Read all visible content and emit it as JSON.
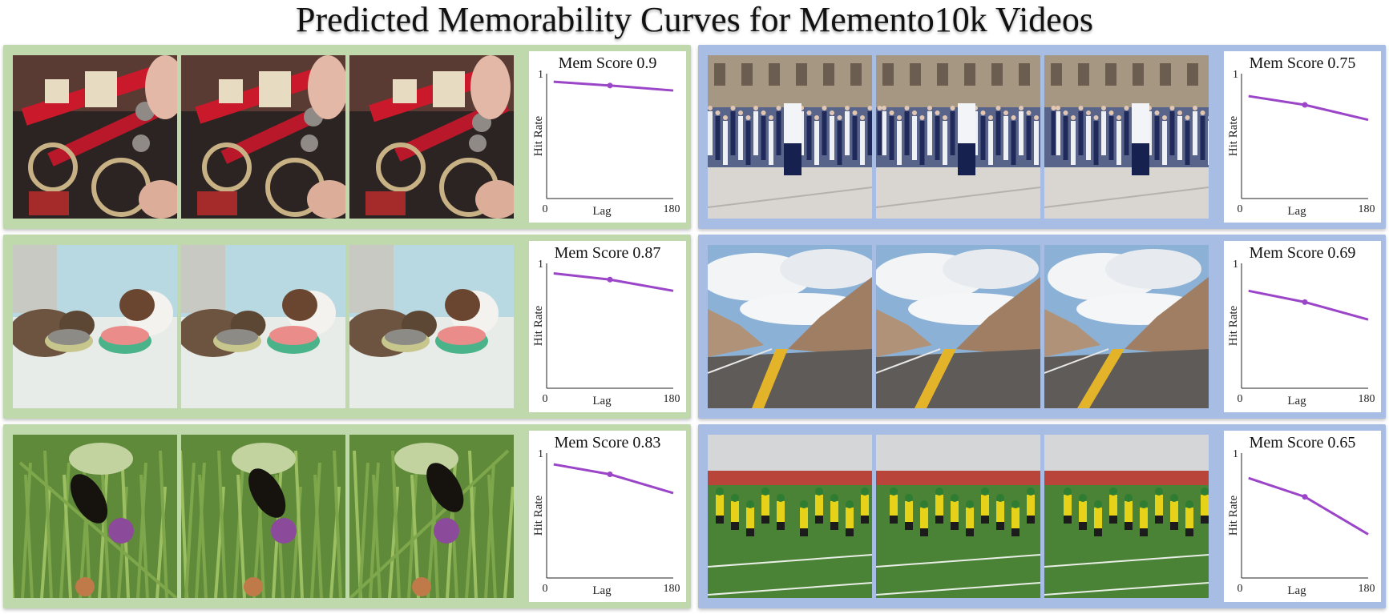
{
  "title": "Predicted Memorability Curves for Memento10k Videos",
  "colors": {
    "green_panel": "#bfd9ad",
    "blue_panel": "#a7bde3",
    "curve": "#9b45c8"
  },
  "panels": [
    {
      "theme": "green",
      "scene": "lego-gears",
      "frames": 3
    },
    {
      "theme": "blue",
      "scene": "marching-parade",
      "frames": 3
    },
    {
      "theme": "green",
      "scene": "cats-eating",
      "frames": 3
    },
    {
      "theme": "blue",
      "scene": "mountain-road",
      "frames": 3
    },
    {
      "theme": "green",
      "scene": "butterfly-flower",
      "frames": 3
    },
    {
      "theme": "blue",
      "scene": "football-field",
      "frames": 3
    }
  ],
  "chart_data": [
    {
      "type": "line",
      "title": "Mem Score 0.9",
      "xlabel": "Lag",
      "ylabel": "Hit Rate",
      "xlim": [
        0,
        180
      ],
      "ylim": [
        0,
        1
      ],
      "x": [
        10,
        90,
        180
      ],
      "y": [
        0.935,
        0.905,
        0.865
      ]
    },
    {
      "type": "line",
      "title": "Mem Score 0.75",
      "xlabel": "Lag",
      "ylabel": "Hit Rate",
      "xlim": [
        0,
        180
      ],
      "ylim": [
        0,
        1
      ],
      "x": [
        10,
        90,
        180
      ],
      "y": [
        0.82,
        0.75,
        0.63
      ]
    },
    {
      "type": "line",
      "title": "Mem Score 0.87",
      "xlabel": "Lag",
      "ylabel": "Hit Rate",
      "xlim": [
        0,
        180
      ],
      "ylim": [
        0,
        1
      ],
      "x": [
        10,
        90,
        180
      ],
      "y": [
        0.92,
        0.87,
        0.78
      ]
    },
    {
      "type": "line",
      "title": "Mem Score 0.69",
      "xlabel": "Lag",
      "ylabel": "Hit Rate",
      "xlim": [
        0,
        180
      ],
      "ylim": [
        0,
        1
      ],
      "x": [
        10,
        90,
        180
      ],
      "y": [
        0.78,
        0.69,
        0.55
      ]
    },
    {
      "type": "line",
      "title": "Mem Score 0.83",
      "xlabel": "Lag",
      "ylabel": "Hit Rate",
      "xlim": [
        0,
        180
      ],
      "ylim": [
        0,
        1
      ],
      "x": [
        10,
        90,
        180
      ],
      "y": [
        0.91,
        0.83,
        0.68
      ]
    },
    {
      "type": "line",
      "title": "Mem Score 0.65",
      "xlabel": "Lag",
      "ylabel": "Hit Rate",
      "xlim": [
        0,
        180
      ],
      "ylim": [
        0,
        1
      ],
      "x": [
        10,
        90,
        180
      ],
      "y": [
        0.8,
        0.65,
        0.35
      ]
    }
  ]
}
